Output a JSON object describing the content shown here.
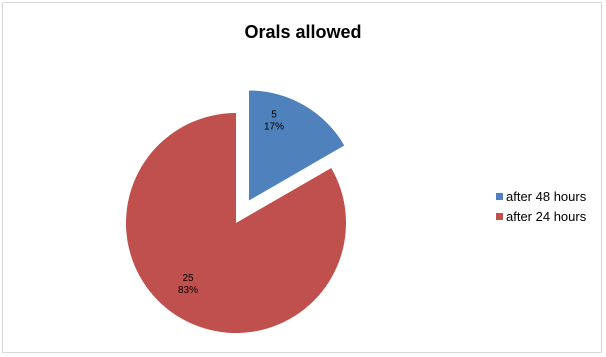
{
  "chart_data": {
    "type": "pie",
    "title": "Orals allowed",
    "slices": [
      {
        "label": "after 48 hours",
        "value": 5,
        "percent": "17%",
        "color": "#4f81bd",
        "exploded": true
      },
      {
        "label": "after 24 hours",
        "value": 25,
        "percent": "83%",
        "color": "#c0504d",
        "exploded": false
      }
    ],
    "legend_position": "right"
  }
}
